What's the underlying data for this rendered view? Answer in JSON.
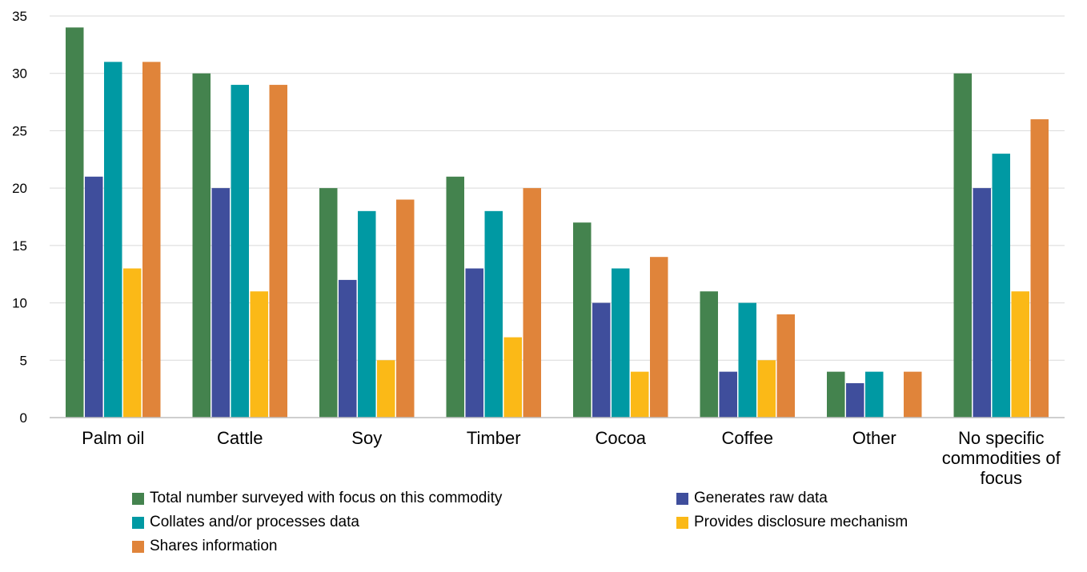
{
  "chart_data": {
    "type": "bar",
    "categories": [
      "Palm oil",
      "Cattle",
      "Soy",
      "Timber",
      "Cocoa",
      "Coffee",
      "Other",
      "No specific commodities of focus"
    ],
    "category_label_lines": [
      [
        "Palm oil"
      ],
      [
        "Cattle"
      ],
      [
        "Soy"
      ],
      [
        "Timber"
      ],
      [
        "Cocoa"
      ],
      [
        "Coffee"
      ],
      [
        "Other"
      ],
      [
        "No specific",
        "commodities of",
        "focus"
      ]
    ],
    "series": [
      {
        "name": "Total number surveyed with focus on this commodity",
        "color": "#44834E",
        "values": [
          34,
          30,
          20,
          21,
          17,
          11,
          4,
          30
        ]
      },
      {
        "name": "Generates raw data",
        "color": "#3F4E9C",
        "values": [
          21,
          20,
          12,
          13,
          10,
          4,
          3,
          20
        ]
      },
      {
        "name": "Collates and/or processes data",
        "color": "#0099A3",
        "values": [
          31,
          29,
          18,
          18,
          13,
          10,
          4,
          23
        ]
      },
      {
        "name": "Provides disclosure mechanism",
        "color": "#FBB917",
        "values": [
          13,
          11,
          5,
          7,
          4,
          5,
          0,
          11
        ]
      },
      {
        "name": "Shares information",
        "color": "#E0843A",
        "values": [
          31,
          29,
          19,
          20,
          14,
          9,
          4,
          26
        ]
      }
    ],
    "y_ticks": [
      "0",
      "5",
      "10",
      "15",
      "20",
      "25",
      "30",
      "35"
    ],
    "ylim": [
      0,
      35
    ],
    "grid": true,
    "legend_position": "bottom"
  }
}
